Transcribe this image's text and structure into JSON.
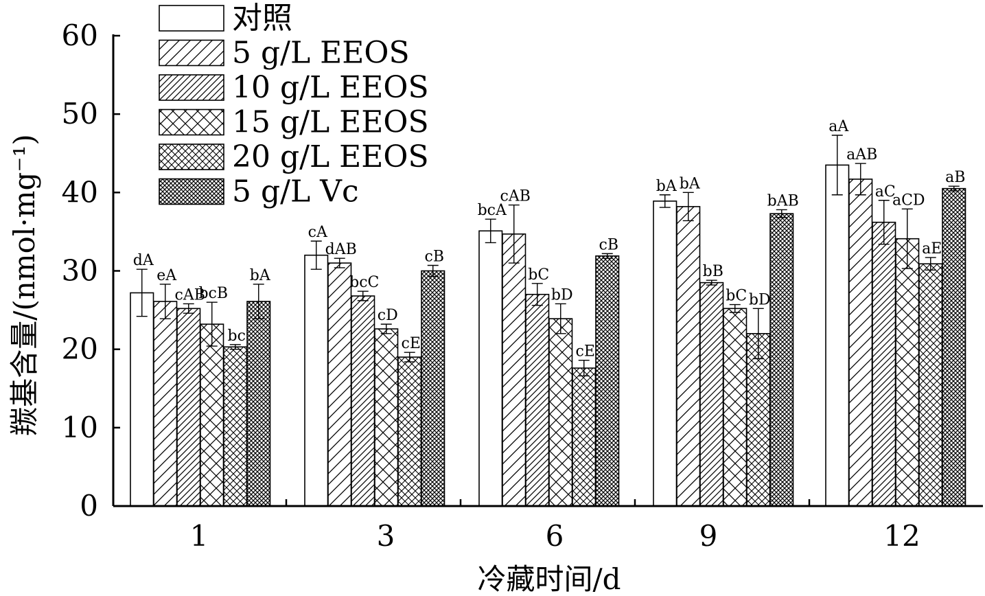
{
  "chart_data": {
    "type": "bar",
    "xlabel": "冷藏时间/d",
    "ylabel": "羰基含量/(nmol·mg⁻¹)",
    "ylim": [
      0,
      60
    ],
    "yticks": [
      0,
      10,
      20,
      30,
      40,
      50,
      60
    ],
    "categories": [
      "1",
      "3",
      "6",
      "9",
      "12"
    ],
    "legend_position": "top-left",
    "series": [
      {
        "name": "对照",
        "pattern": "none",
        "values": [
          27.2,
          32.0,
          35.1,
          38.9,
          43.5
        ],
        "errors": [
          3.0,
          1.8,
          1.5,
          0.8,
          3.8
        ],
        "labels": [
          "dA",
          "cA",
          "bcA",
          "bA",
          "aA"
        ]
      },
      {
        "name": "5 g/L EEOS",
        "pattern": "wide-diagonal",
        "values": [
          26.1,
          31.0,
          34.7,
          38.2,
          41.7
        ],
        "errors": [
          2.2,
          0.6,
          3.7,
          1.8,
          2.0
        ],
        "labels": [
          "eA",
          "dAB",
          "cAB",
          "bA",
          "aAB"
        ]
      },
      {
        "name": "10 g/L EEOS",
        "pattern": "dense-diagonal",
        "values": [
          25.2,
          26.8,
          27.0,
          28.5,
          36.2
        ],
        "errors": [
          0.6,
          0.6,
          1.4,
          0.3,
          2.8
        ],
        "labels": [
          "cAB",
          "bcC",
          "bC",
          "bB",
          "aC"
        ]
      },
      {
        "name": "15 g/L EEOS",
        "pattern": "wide-crosshatch",
        "values": [
          23.2,
          22.6,
          23.9,
          25.2,
          34.1
        ],
        "errors": [
          2.8,
          0.6,
          1.9,
          0.5,
          3.8
        ],
        "labels": [
          "bcB",
          "cD",
          "bD",
          "bC",
          "aCD"
        ]
      },
      {
        "name": "20 g/L EEOS",
        "pattern": "dense-crosshatch",
        "values": [
          20.3,
          19.0,
          17.6,
          22.0,
          30.9
        ],
        "errors": [
          0.3,
          0.6,
          1.0,
          3.2,
          0.8
        ],
        "labels": [
          "bc",
          "cE",
          "cE",
          "bD",
          "aE"
        ]
      },
      {
        "name": "5 g/L Vc",
        "pattern": "fine-crosshatch",
        "values": [
          26.1,
          30.0,
          31.9,
          37.3,
          40.5
        ],
        "errors": [
          2.2,
          0.7,
          0.3,
          0.5,
          0.3
        ],
        "labels": [
          "bA",
          "cB",
          "cB",
          "bAB",
          "aB"
        ]
      }
    ]
  }
}
